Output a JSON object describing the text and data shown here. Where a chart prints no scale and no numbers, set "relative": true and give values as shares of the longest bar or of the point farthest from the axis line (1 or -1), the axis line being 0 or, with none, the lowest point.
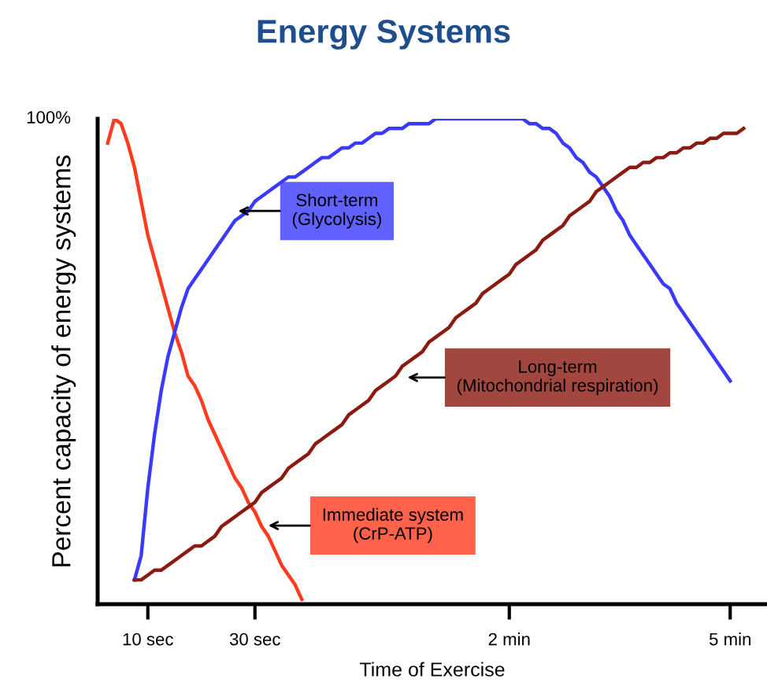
{
  "chart_data": {
    "type": "line",
    "title": "Energy Systems",
    "xlabel": "Time of Exercise",
    "ylabel": "Percent capacity of energy systems",
    "relative": true,
    "categories": [
      null,
      null,
      null,
      null,
      null,
      null,
      null,
      "10 sec",
      null,
      null,
      null,
      null,
      null,
      null,
      null,
      null,
      null,
      null,
      null,
      null,
      null,
      null,
      null,
      "30 sec",
      null,
      null,
      null,
      null,
      null,
      null,
      null,
      null,
      null,
      null,
      null,
      null,
      null,
      null,
      null,
      null,
      null,
      null,
      null,
      null,
      null,
      null,
      null,
      null,
      null,
      null,
      null,
      null,
      null,
      null,
      null,
      null,
      null,
      null,
      null,
      null,
      null,
      "2 min",
      null,
      null,
      null,
      null,
      null,
      null,
      null,
      null,
      null,
      null,
      null,
      null,
      null,
      null,
      null,
      null,
      null,
      null,
      null,
      null,
      null,
      null,
      null,
      null,
      null,
      null,
      null,
      null,
      null,
      null,
      null,
      null,
      "5 min",
      null,
      null,
      null,
      null,
      null
    ],
    "series": [
      {
        "color": "#ff3b1f",
        "values": [
          null,
          0.95,
          1.0,
          0.99,
          0.95,
          0.9,
          0.83,
          0.76,
          0.71,
          0.66,
          0.61,
          0.56,
          0.52,
          0.47,
          0.45,
          0.42,
          0.38,
          0.35,
          0.32,
          0.29,
          0.26,
          0.24,
          0.21,
          0.19,
          0.16,
          0.14,
          0.11,
          0.08,
          0.06,
          0.04,
          0.01,
          null,
          null,
          null,
          null,
          null,
          null,
          null,
          null,
          null,
          null,
          null,
          null,
          null,
          null,
          null,
          null,
          null,
          null,
          null,
          null,
          null,
          null,
          null,
          null,
          null,
          null,
          null,
          null,
          null,
          null,
          null,
          null,
          null,
          null,
          null,
          null,
          null,
          null,
          null,
          null,
          null,
          null,
          null,
          null,
          null,
          null,
          null,
          null,
          null,
          null,
          null,
          null,
          null,
          null,
          null,
          null,
          null,
          null,
          null,
          null,
          null,
          null,
          null,
          null,
          null,
          null,
          null,
          null,
          null
        ]
      },
      {
        "color": "#3a3aff",
        "values": [
          null,
          null,
          null,
          null,
          null,
          0.05,
          0.1,
          0.24,
          0.35,
          0.44,
          0.51,
          0.56,
          0.61,
          0.65,
          0.67,
          0.69,
          0.71,
          0.73,
          0.75,
          0.77,
          0.79,
          0.8,
          0.81,
          0.83,
          0.84,
          0.85,
          0.86,
          0.87,
          0.88,
          0.88,
          0.89,
          0.9,
          0.91,
          0.92,
          0.92,
          0.93,
          0.94,
          0.94,
          0.95,
          0.95,
          0.96,
          0.97,
          0.97,
          0.98,
          0.98,
          0.98,
          0.99,
          0.99,
          0.99,
          0.99,
          1.0,
          1.0,
          1.0,
          1.0,
          1.0,
          1.0,
          1.0,
          1.0,
          1.0,
          1.0,
          1.0,
          1.0,
          1.0,
          1.0,
          0.99,
          0.99,
          0.98,
          0.98,
          0.97,
          0.95,
          0.94,
          0.92,
          0.91,
          0.89,
          0.88,
          0.86,
          0.84,
          0.81,
          0.79,
          0.76,
          0.74,
          0.72,
          0.7,
          0.68,
          0.66,
          0.65,
          0.62,
          0.6,
          0.58,
          0.56,
          0.54,
          0.52,
          0.5,
          0.48,
          0.46,
          null,
          null,
          null,
          null,
          null
        ]
      },
      {
        "color": "#8b1a10",
        "values": [
          null,
          null,
          null,
          null,
          null,
          0.05,
          0.05,
          0.06,
          0.07,
          0.07,
          0.08,
          0.09,
          0.1,
          0.11,
          0.12,
          0.12,
          0.13,
          0.14,
          0.16,
          0.17,
          0.18,
          0.19,
          0.2,
          0.21,
          0.23,
          0.24,
          0.25,
          0.26,
          0.28,
          0.29,
          0.3,
          0.31,
          0.33,
          0.34,
          0.35,
          0.36,
          0.37,
          0.39,
          0.4,
          0.41,
          0.42,
          0.44,
          0.45,
          0.46,
          0.47,
          0.49,
          0.5,
          0.51,
          0.52,
          0.54,
          0.55,
          0.56,
          0.57,
          0.59,
          0.6,
          0.61,
          0.62,
          0.64,
          0.65,
          0.66,
          0.67,
          0.68,
          0.7,
          0.71,
          0.72,
          0.73,
          0.75,
          0.76,
          0.77,
          0.78,
          0.8,
          0.81,
          0.82,
          0.83,
          0.85,
          0.86,
          0.87,
          0.88,
          0.89,
          0.9,
          0.9,
          0.91,
          0.91,
          0.92,
          0.92,
          0.93,
          0.93,
          0.94,
          0.94,
          0.95,
          0.95,
          0.96,
          0.96,
          0.97,
          0.97,
          0.97,
          0.98,
          null,
          null,
          null
        ]
      }
    ],
    "annotations": [
      "100%",
      "Immediate system\n(CrP-ATP)",
      "Short-term\n(Glycolysis)",
      "Long-term\n(Mitochondrial respiration)"
    ],
    "grid": false,
    "legend": false,
    "marker": "none",
    "line_style": "solid"
  }
}
